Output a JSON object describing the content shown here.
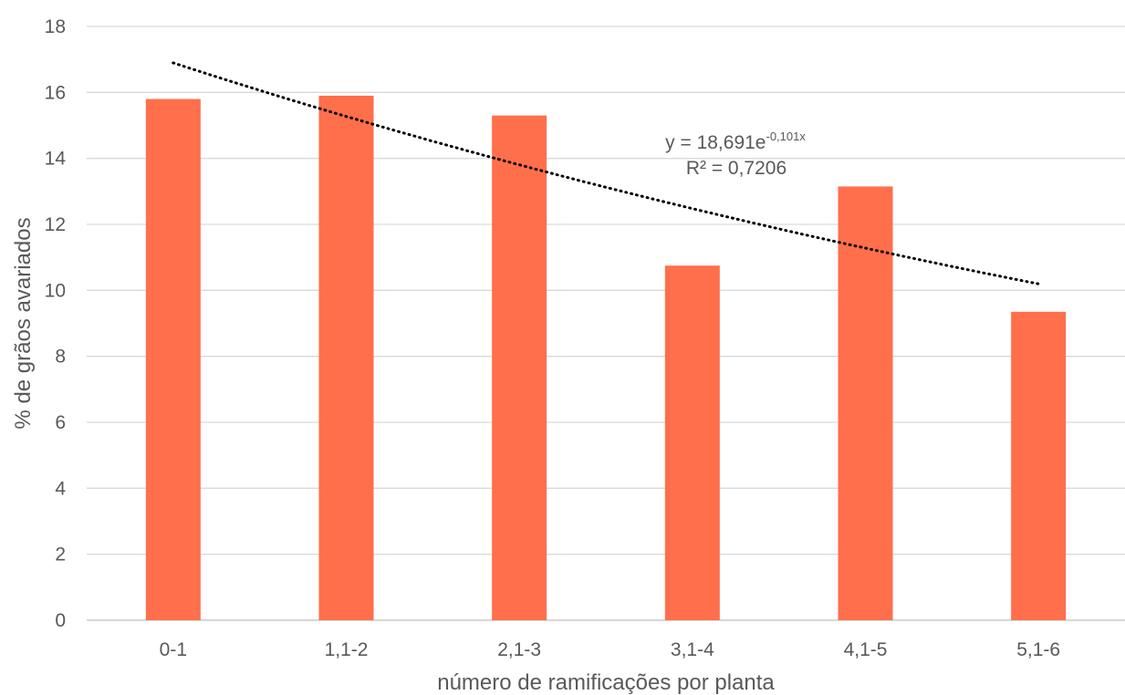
{
  "chart_data": {
    "type": "bar",
    "title": "",
    "xlabel": "número de ramificações por planta",
    "ylabel": "% de grãos avariados",
    "categories": [
      "0-1",
      "1,1-2",
      "2,1-3",
      "3,1-4",
      "4,1-5",
      "5,1-6"
    ],
    "values": [
      15.8,
      15.9,
      15.3,
      10.75,
      13.15,
      9.35
    ],
    "ylim": [
      0,
      18
    ],
    "yticks": [
      0,
      2,
      4,
      6,
      8,
      10,
      12,
      14,
      16,
      18
    ],
    "grid": true,
    "legend": "none",
    "bar_color": "#ff6f4b",
    "trendline": {
      "type": "exponential",
      "a": 18.691,
      "b": -0.101,
      "style": "dotted",
      "color": "#000000",
      "equation_prefix": "y = 18,691e",
      "equation_exponent": "-0,101x",
      "r_squared_label": "R² = 0,7206"
    }
  }
}
